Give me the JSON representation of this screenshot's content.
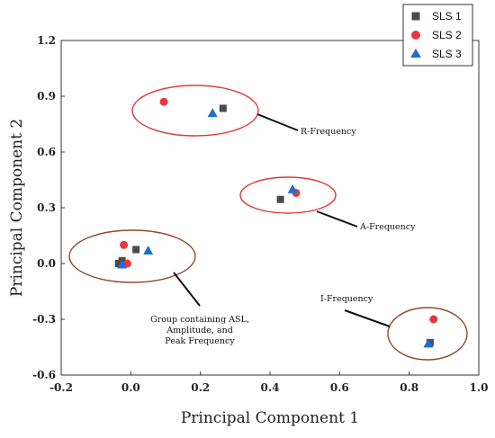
{
  "chart_data": {
    "type": "scatter",
    "title": "",
    "xlabel": "Principal Component 1",
    "ylabel": "Principal Component 2",
    "xlim": [
      -0.2,
      1.0
    ],
    "ylim": [
      -0.6,
      1.2
    ],
    "xticks": [
      "-0.2",
      "0.0",
      "0.2",
      "0.4",
      "0.6",
      "0.8",
      "1.0"
    ],
    "yticks": [
      "-0.6",
      "-0.3",
      "0.0",
      "0.3",
      "0.6",
      "0.9",
      "1.2"
    ],
    "grid": false,
    "legend_position": "top-right",
    "series": [
      {
        "name": "SLS 1",
        "marker": "square",
        "color": "#4a4a4a",
        "points": [
          [
            0.265,
            0.835
          ],
          [
            0.43,
            0.345
          ],
          [
            0.86,
            -0.425
          ],
          [
            -0.025,
            0.015
          ],
          [
            -0.035,
            0.0
          ],
          [
            0.015,
            0.075
          ]
        ]
      },
      {
        "name": "SLS 2",
        "marker": "circle",
        "color": "#e8383d",
        "points": [
          [
            0.095,
            0.87
          ],
          [
            0.475,
            0.38
          ],
          [
            0.87,
            -0.3
          ],
          [
            -0.02,
            0.1
          ],
          [
            -0.01,
            0.0
          ]
        ]
      },
      {
        "name": "SLS 3",
        "marker": "triangle",
        "color": "#1f6fd1",
        "points": [
          [
            0.235,
            0.81
          ],
          [
            0.465,
            0.4
          ],
          [
            0.855,
            -0.43
          ],
          [
            0.05,
            0.07
          ],
          [
            -0.025,
            -0.005
          ]
        ]
      }
    ],
    "annotations": [
      {
        "id": "r",
        "label": "R-Frequency",
        "ellipse_color": "#e03a3a"
      },
      {
        "id": "a",
        "label": "A-Frequency",
        "ellipse_color": "#e03a3a"
      },
      {
        "id": "i",
        "label": "I-Frequency",
        "ellipse_color": "#8b4a2a"
      },
      {
        "id": "g",
        "label_lines": [
          "Group containing ASL,",
          "Amplitude, and",
          "Peak Frequency"
        ],
        "ellipse_color": "#8b4a2a"
      }
    ]
  }
}
